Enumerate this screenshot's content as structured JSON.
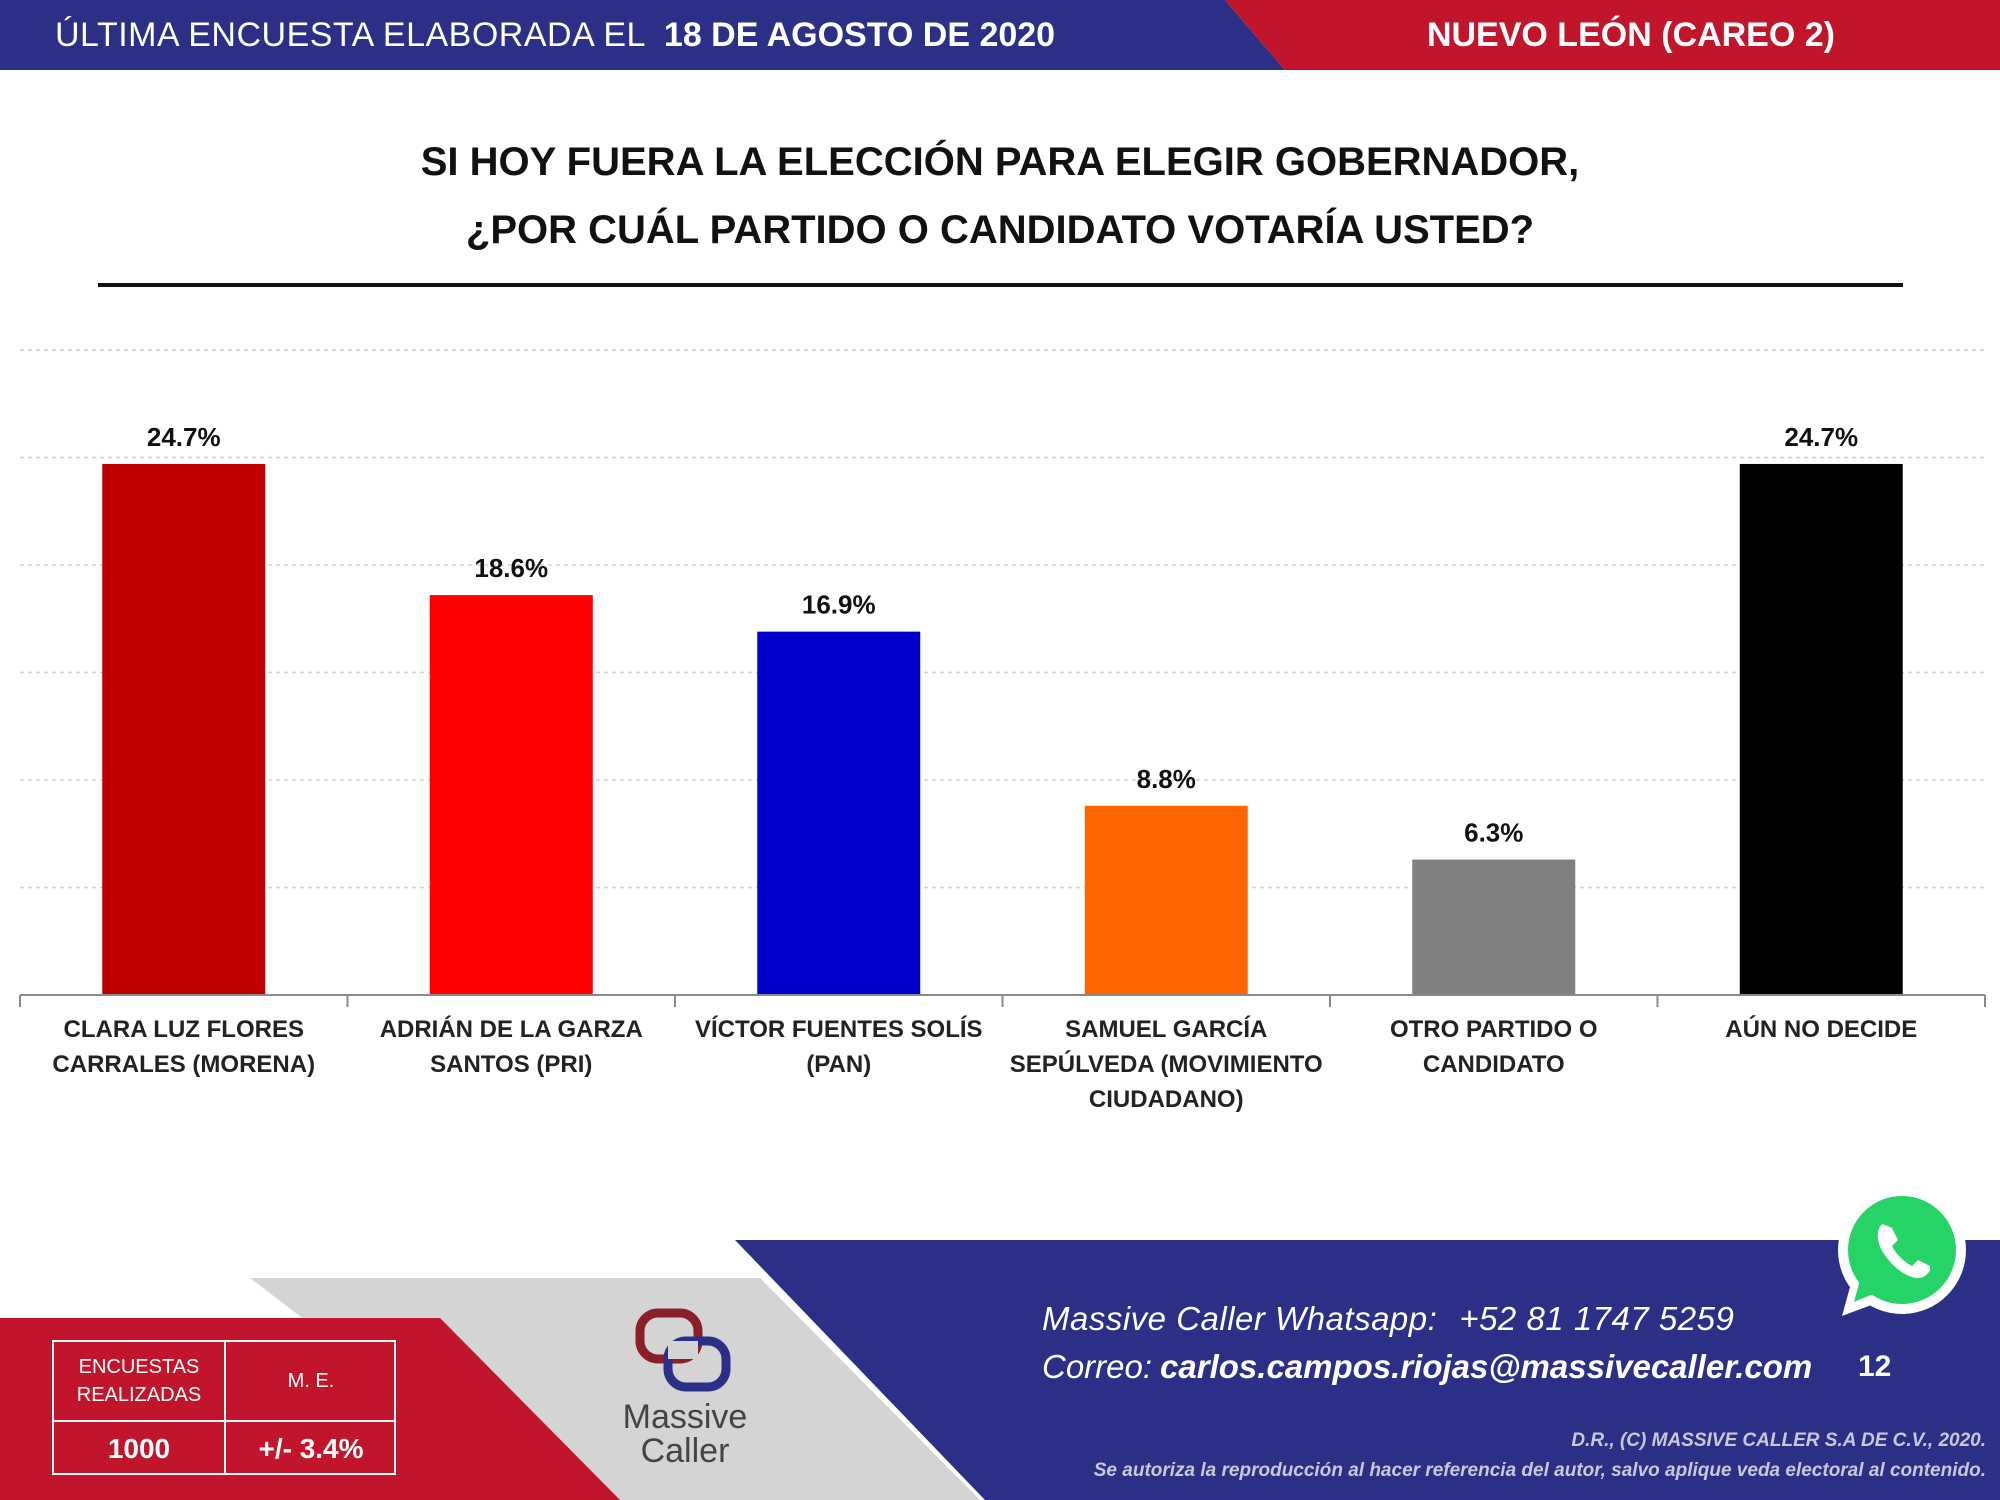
{
  "header": {
    "survey_label": "ÚLTIMA ENCUESTA ELABORADA EL",
    "survey_date": "18 DE AGOSTO DE 2020",
    "region": "NUEVO LEÓN (CAREO 2)",
    "colors": {
      "blue": "#2b2f86",
      "red": "#c0152a"
    }
  },
  "title": {
    "line1": "SI HOY FUERA LA ELECCIÓN PARA ELEGIR GOBERNADOR,",
    "line2": "¿POR CUÁL PARTIDO O CANDIDATO VOTARÍA USTED?"
  },
  "chart_data": {
    "type": "bar",
    "title": "SI HOY FUERA LA ELECCIÓN PARA ELEGIR GOBERNADOR, ¿POR CUÁL PARTIDO O CANDIDATO VOTARÍA USTED?",
    "categories": [
      [
        "CLARA LUZ FLORES",
        "CARRALES (MORENA)"
      ],
      [
        "ADRIÁN DE LA GARZA",
        "SANTOS (PRI)"
      ],
      [
        "VÍCTOR FUENTES SOLÍS",
        "(PAN)"
      ],
      [
        "SAMUEL GARCÍA",
        "SEPÚLVEDA (MOVIMIENTO",
        "CIUDADANO)"
      ],
      [
        "OTRO PARTIDO O",
        "CANDIDATO"
      ],
      [
        "AÚN NO DECIDE"
      ]
    ],
    "values": [
      24.7,
      18.6,
      16.9,
      8.8,
      6.3,
      24.7
    ],
    "value_labels": [
      "24.7%",
      "18.6%",
      "16.9%",
      "8.8%",
      "6.3%",
      "24.7%"
    ],
    "colors": [
      "#c00000",
      "#ff0000",
      "#0000cc",
      "#ff6600",
      "#808080",
      "#000000"
    ],
    "ylim": [
      0,
      30
    ],
    "grid": true,
    "xlabel": "",
    "ylabel": ""
  },
  "footer": {
    "whatsapp_label": "Massive Caller Whatsapp:",
    "whatsapp_number": "+52 81 1747 5259",
    "email_label": "Correo:",
    "email": "carlos.campos.riojas@massivecaller.com",
    "page_number": "12",
    "rights_line1": "D.R., (C) MASSIVE CALLER S.A DE C.V., 2020.",
    "rights_line2": "Se autoriza la reproducción al hacer referencia del autor, salvo aplique veda electoral al contenido.",
    "logo_name": "Massive\nCaller",
    "stats": {
      "h_surveys": "ENCUESTAS REALIZADAS",
      "h_margin": "M. E.",
      "surveys": "1000",
      "margin": "+/- 3.4%"
    }
  }
}
